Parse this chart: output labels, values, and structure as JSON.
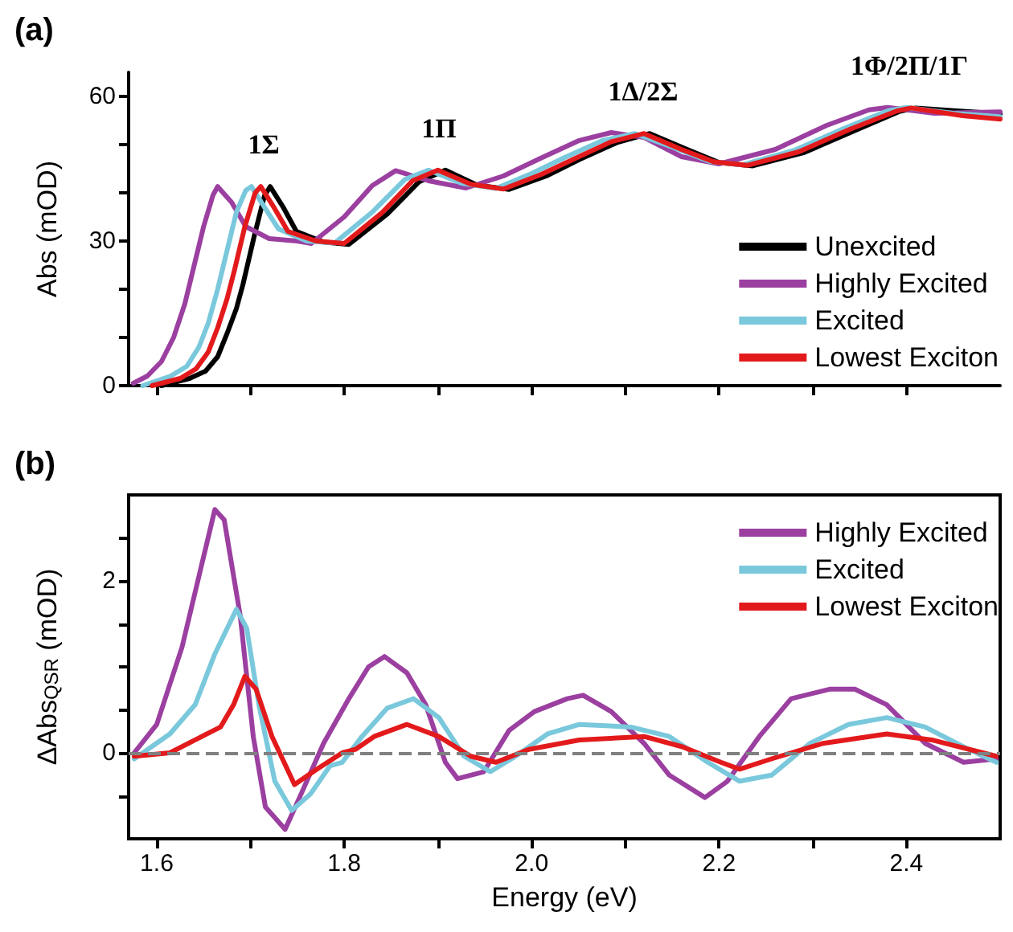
{
  "chart_data": [
    {
      "type": "line",
      "title": "(a)",
      "ylabel": "Abs (mOD)",
      "xlim": [
        1.57,
        2.5
      ],
      "ylim": [
        0,
        65
      ],
      "xticks": [
        1.6,
        1.7,
        1.8,
        1.9,
        2,
        2.1,
        2.2,
        2.3,
        2.4
      ],
      "yticks": [
        0,
        {
          "value": 10,
          "label": null
        },
        {
          "value": 20,
          "label": null
        },
        30,
        {
          "value": 40,
          "label": null
        },
        {
          "value": 50,
          "label": null
        },
        60
      ],
      "tick_labels": "y",
      "legend": "bottom right",
      "grid": false,
      "marker": "none",
      "line_style": "solid",
      "annotations": [
        "1Σ",
        "1Π",
        "1Δ/2Σ",
        "1Φ/2Π/1Γ"
      ],
      "series": [
        {
          "name": "Unexcited",
          "color": "#000000",
          "x": [
            1.605,
            1.635,
            1.652,
            1.665,
            1.675,
            1.685,
            1.692,
            1.704,
            1.715,
            1.721,
            1.735,
            1.749,
            1.778,
            1.805,
            1.846,
            1.88,
            1.908,
            1.942,
            1.976,
            2.017,
            2.051,
            2.092,
            2.126,
            2.167,
            2.2,
            2.236,
            2.29,
            2.345,
            2.393,
            2.41,
            2.46,
            2.5
          ],
          "values": [
            0,
            1.5,
            3,
            6,
            10.8,
            16,
            21,
            31,
            39.4,
            41.3,
            37,
            32,
            29.8,
            29.3,
            35.6,
            42.3,
            44.7,
            41.6,
            40.7,
            43.6,
            46.9,
            50.5,
            52.3,
            48.9,
            46.3,
            45.6,
            48.3,
            52.9,
            56.9,
            57.6,
            56.9,
            56.4
          ]
        },
        {
          "name": "Highly Excited",
          "color": "#9b3fa0",
          "x": [
            1.575,
            1.59,
            1.605,
            1.618,
            1.63,
            1.64,
            1.65,
            1.66,
            1.665,
            1.68,
            1.695,
            1.72,
            1.75,
            1.765,
            1.8,
            1.83,
            1.855,
            1.89,
            1.93,
            1.97,
            2.01,
            2.05,
            2.085,
            2.12,
            2.16,
            2.2,
            2.26,
            2.315,
            2.36,
            2.38,
            2.43,
            2.5
          ],
          "values": [
            0.5,
            2,
            5,
            10,
            17,
            25,
            33,
            39.5,
            41.3,
            38,
            33,
            30.5,
            30,
            29.5,
            35,
            41.5,
            44.6,
            42.5,
            41,
            43.5,
            47.2,
            50.8,
            52.5,
            51.5,
            47.5,
            46,
            49,
            54,
            57.2,
            57.7,
            56.5,
            56.8
          ]
        },
        {
          "name": "Excited",
          "color": "#7ac8dc",
          "x": [
            1.585,
            1.615,
            1.632,
            1.645,
            1.655,
            1.665,
            1.675,
            1.685,
            1.695,
            1.701,
            1.715,
            1.73,
            1.76,
            1.79,
            1.83,
            1.865,
            1.89,
            1.925,
            1.962,
            2,
            2.035,
            2.075,
            2.11,
            2.15,
            2.19,
            2.225,
            2.28,
            2.335,
            2.38,
            2.4,
            2.45,
            2.5
          ],
          "values": [
            0,
            2,
            4,
            8,
            13,
            20,
            28,
            36,
            40.5,
            41.3,
            37,
            32.5,
            30,
            29.6,
            36,
            42.8,
            44.7,
            42,
            40.9,
            44,
            47.3,
            50.8,
            52.3,
            49.5,
            46.5,
            45.8,
            48.8,
            53.5,
            57,
            57.7,
            56.5,
            55.8
          ]
        },
        {
          "name": "Lowest Exciton",
          "color": "#e31a1c",
          "x": [
            1.595,
            1.625,
            1.642,
            1.655,
            1.665,
            1.675,
            1.683,
            1.694,
            1.705,
            1.711,
            1.725,
            1.74,
            1.77,
            1.8,
            1.84,
            1.873,
            1.9,
            1.935,
            1.97,
            2.01,
            2.045,
            2.085,
            2.12,
            2.16,
            2.195,
            2.23,
            2.285,
            2.34,
            2.39,
            2.405,
            2.46,
            2.5
          ],
          "values": [
            0,
            1.5,
            3.5,
            7,
            12,
            18,
            24,
            33,
            40,
            41.3,
            37,
            32,
            30,
            29.5,
            35.8,
            42.5,
            44.7,
            41.8,
            40.8,
            43.8,
            47,
            50.6,
            52.3,
            49,
            46.4,
            45.7,
            48.5,
            53.2,
            57,
            57.6,
            56,
            55.3
          ]
        }
      ]
    },
    {
      "type": "line",
      "title": "(b)",
      "xlabel": "Energy (eV)",
      "ylabel": "ΔAbs$_{QSR}$ (mOD)",
      "xlim": [
        1.57,
        2.5
      ],
      "ylim": [
        -1,
        3
      ],
      "xticks": [
        1.6,
        {
          "value": 1.7,
          "label": null
        },
        1.8,
        {
          "value": 1.9,
          "label": null
        },
        {
          "value": 2,
          "label": "2.0"
        },
        {
          "value": 2.1,
          "label": null
        },
        2.2,
        {
          "value": 2.3,
          "label": null
        },
        2.4
      ],
      "yticks": [
        {
          "value": -0.5,
          "label": null
        },
        0,
        {
          "value": 0.5,
          "label": null
        },
        {
          "value": 1,
          "label": null
        },
        {
          "value": 1.5,
          "label": null
        },
        2,
        {
          "value": 2.5,
          "label": null
        }
      ],
      "legend": "top right",
      "grid": false,
      "marker": "none",
      "line_style": "solid",
      "ref_lines": [
        {
          "axis": "y",
          "value": 0,
          "color": "#808080",
          "line_style": "dashed"
        }
      ],
      "series": [
        {
          "name": "Highly Excited",
          "color": "#9b3fa0",
          "x": [
            1.576,
            1.6,
            1.627,
            1.648,
            1.662,
            1.672,
            1.689,
            1.703,
            1.716,
            1.737,
            1.754,
            1.778,
            1.805,
            1.826,
            1.843,
            1.867,
            1.887,
            1.908,
            1.921,
            1.949,
            1.976,
            2.003,
            2.038,
            2.055,
            2.085,
            2.12,
            2.147,
            2.185,
            2.209,
            2.243,
            2.277,
            2.318,
            2.345,
            2.379,
            2.42,
            2.461,
            2.496
          ],
          "values": [
            0,
            0.33,
            1.23,
            2.19,
            2.83,
            2.71,
            1.6,
            0.19,
            -0.63,
            -0.89,
            -0.48,
            0.11,
            0.63,
            1,
            1.12,
            0.93,
            0.56,
            -0.11,
            -0.3,
            -0.22,
            0.26,
            0.48,
            0.63,
            0.67,
            0.48,
            0.11,
            -0.26,
            -0.52,
            -0.33,
            0.19,
            0.63,
            0.74,
            0.74,
            0.56,
            0.11,
            -0.11,
            -0.07
          ]
        },
        {
          "name": "Excited",
          "color": "#7ac8dc",
          "x": [
            1.576,
            1.614,
            1.641,
            1.662,
            1.685,
            1.696,
            1.709,
            1.726,
            1.744,
            1.764,
            1.785,
            1.798,
            1.819,
            1.846,
            1.874,
            1.901,
            1.928,
            1.956,
            1.983,
            2.017,
            2.051,
            2.106,
            2.147,
            2.188,
            2.222,
            2.256,
            2.297,
            2.338,
            2.379,
            2.42,
            2.461,
            2.496
          ],
          "values": [
            -0.07,
            0.22,
            0.56,
            1.15,
            1.67,
            1.45,
            0.56,
            -0.33,
            -0.67,
            -0.48,
            -0.15,
            -0.11,
            0.19,
            0.52,
            0.63,
            0.41,
            -0.04,
            -0.22,
            -0.04,
            0.22,
            0.33,
            0.3,
            0.19,
            -0.11,
            -0.33,
            -0.26,
            0.11,
            0.33,
            0.41,
            0.3,
            0.07,
            -0.11
          ]
        },
        {
          "name": "Lowest Exciton",
          "color": "#e31a1c",
          "x": [
            1.576,
            1.614,
            1.641,
            1.668,
            1.682,
            1.694,
            1.706,
            1.723,
            1.747,
            1.771,
            1.798,
            1.812,
            1.832,
            1.867,
            1.901,
            1.935,
            1.962,
            1.997,
            2.051,
            2.12,
            2.161,
            2.202,
            2.222,
            2.256,
            2.311,
            2.379,
            2.427,
            2.496
          ],
          "values": [
            -0.04,
            0,
            0.15,
            0.3,
            0.56,
            0.89,
            0.74,
            0.19,
            -0.37,
            -0.19,
            0,
            0.04,
            0.19,
            0.33,
            0.19,
            -0.04,
            -0.11,
            0.04,
            0.15,
            0.19,
            0.07,
            -0.11,
            -0.19,
            -0.07,
            0.11,
            0.22,
            0.15,
            -0.04
          ]
        }
      ]
    }
  ]
}
